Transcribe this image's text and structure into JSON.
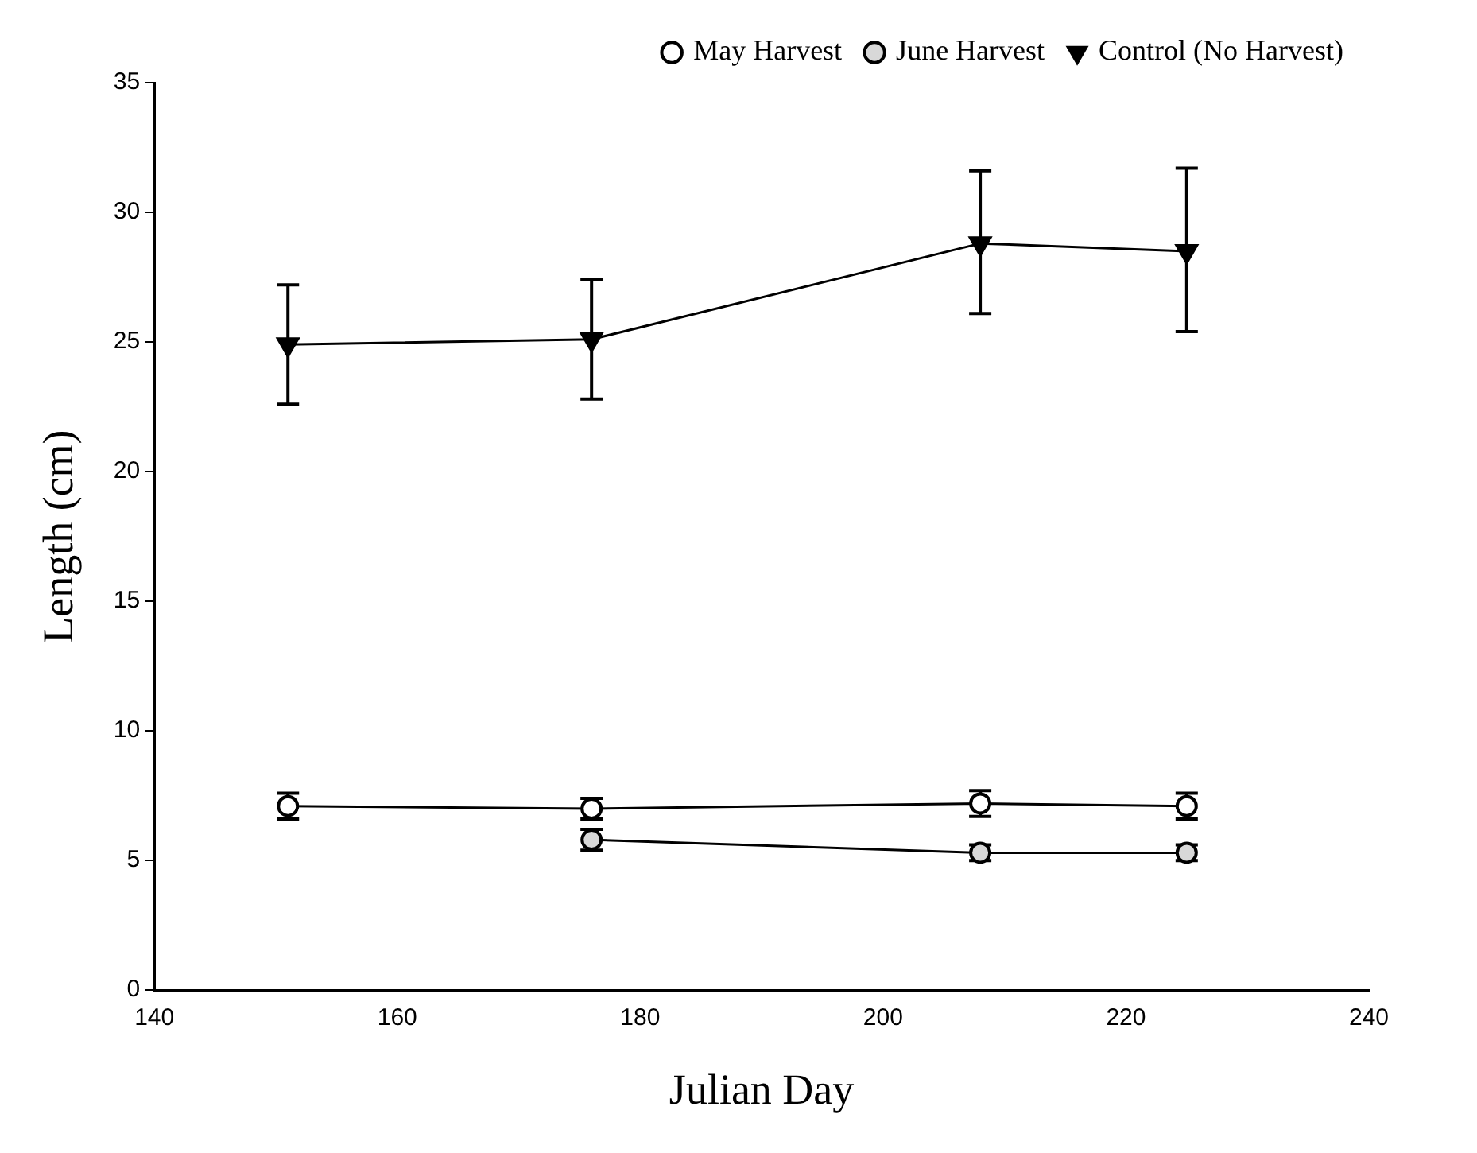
{
  "chart_data": {
    "type": "line",
    "xlabel": "Julian Day",
    "ylabel": "Length (cm)",
    "xlim": [
      140,
      240
    ],
    "xticks": [
      140,
      160,
      180,
      200,
      220,
      240
    ],
    "ylim": [
      0,
      35
    ],
    "yticks": [
      0,
      5,
      10,
      15,
      20,
      25,
      30,
      35
    ],
    "grid": false,
    "legend": "top right",
    "marker": "circle",
    "line_style": "solid",
    "series": [
      {
        "name": "May Harvest",
        "color": "#000000",
        "x": [
          151,
          176,
          208,
          225
        ],
        "values": [
          7.1,
          7.0,
          7.2,
          7.1
        ],
        "errors": [
          0.5,
          0.4,
          0.5,
          0.5
        ]
      },
      {
        "name": "June Harvest",
        "color": "#000000",
        "x": [
          176,
          208,
          225
        ],
        "values": [
          5.8,
          5.3,
          5.3
        ],
        "errors": [
          0.4,
          0.3,
          0.3
        ]
      },
      {
        "name": "Control (No Harvest)",
        "color": "#000000",
        "marker": "triangle",
        "x": [
          151,
          176,
          208,
          225
        ],
        "values": [
          24.9,
          25.1,
          28.8,
          28.5
        ],
        "errors": [
          [
            22.6,
            27.2
          ],
          [
            22.8,
            27.4
          ],
          [
            26.1,
            31.6
          ],
          [
            25.4,
            31.7
          ]
        ]
      }
    ]
  }
}
